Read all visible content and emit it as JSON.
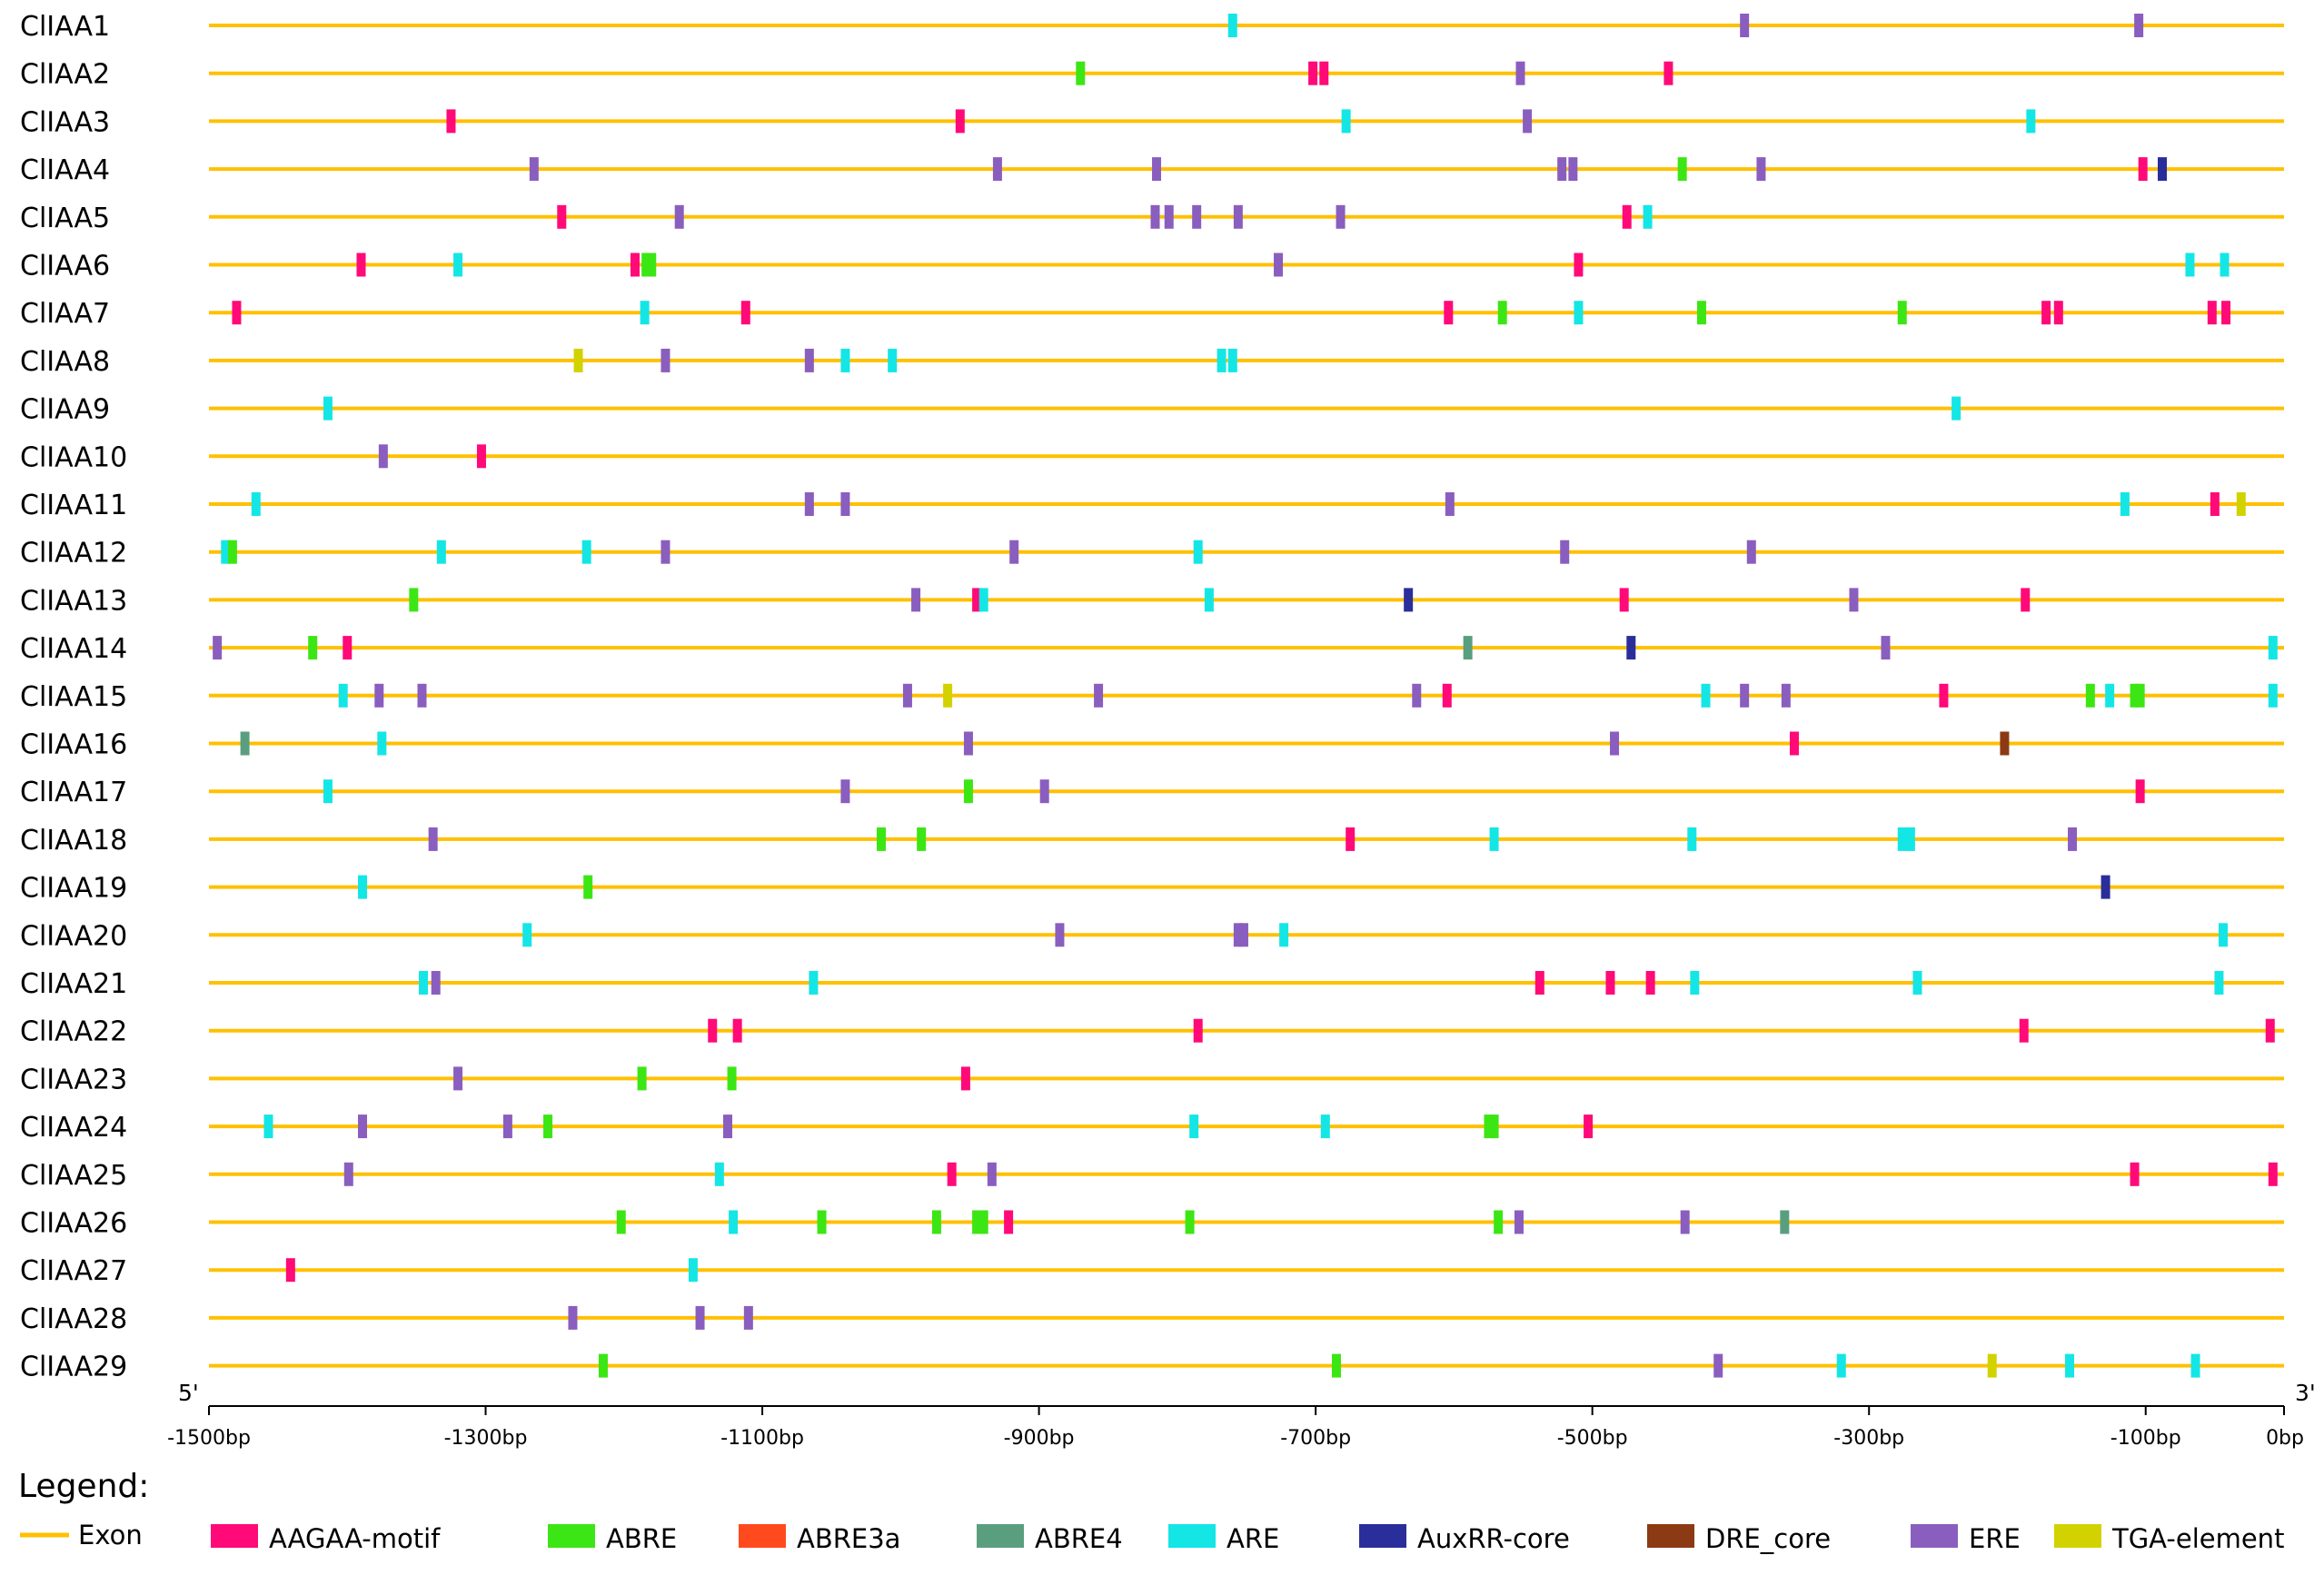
{
  "colors": {
    "exon": "#FFC000",
    "AAGAA-motif": "#FF0A78",
    "ABRE": "#3CE614",
    "ABRE3a": "#FF4A1E",
    "ABRE4": "#5A9E80",
    "ARE": "#14E6E6",
    "AuxRR-core": "#2A2E9A",
    "DRE_core": "#8B3A14",
    "ERE": "#8A5EBE",
    "TGA-element": "#D2D200"
  },
  "axis": {
    "min": -1500,
    "max": 0,
    "ticks": [
      {
        "value": -1500,
        "label": "-1500bp"
      },
      {
        "value": -1300,
        "label": "-1300bp"
      },
      {
        "value": -1100,
        "label": "-1100bp"
      },
      {
        "value": -900,
        "label": "-900bp"
      },
      {
        "value": -700,
        "label": "-700bp"
      },
      {
        "value": -500,
        "label": "-500bp"
      },
      {
        "value": -300,
        "label": "-300bp"
      },
      {
        "value": -100,
        "label": "-100bp"
      },
      {
        "value": 0,
        "label": "0bp"
      }
    ],
    "five_prime": "5'",
    "three_prime": "3'"
  },
  "legend": {
    "title": "Legend:",
    "exon_label": "Exon",
    "items": [
      {
        "key": "AAGAA-motif",
        "label": "AAGAA-motif"
      },
      {
        "key": "ABRE",
        "label": "ABRE"
      },
      {
        "key": "ABRE3a",
        "label": "ABRE3a"
      },
      {
        "key": "ABRE4",
        "label": "ABRE4"
      },
      {
        "key": "ARE",
        "label": "ARE"
      },
      {
        "key": "AuxRR-core",
        "label": "AuxRR-core"
      },
      {
        "key": "DRE_core",
        "label": "DRE_core"
      },
      {
        "key": "ERE",
        "label": "ERE"
      },
      {
        "key": "TGA-element",
        "label": "TGA-element"
      }
    ]
  },
  "genes": [
    {
      "name": "ClIAA1",
      "elements": [
        [
          "ARE",
          -760
        ],
        [
          "ERE",
          -390
        ],
        [
          "ERE",
          -105
        ]
      ]
    },
    {
      "name": "ClIAA2",
      "elements": [
        [
          "ABRE",
          -870
        ],
        [
          "AAGAA-motif",
          -702
        ],
        [
          "AAGAA-motif",
          -694
        ],
        [
          "ERE",
          -552
        ],
        [
          "AAGAA-motif",
          -445
        ]
      ]
    },
    {
      "name": "ClIAA3",
      "elements": [
        [
          "AAGAA-motif",
          -1325
        ],
        [
          "AAGAA-motif",
          -957
        ],
        [
          "ARE",
          -678
        ],
        [
          "ERE",
          -547
        ],
        [
          "ARE",
          -183
        ]
      ]
    },
    {
      "name": "ClIAA4",
      "elements": [
        [
          "ERE",
          -1265
        ],
        [
          "ERE",
          -930
        ],
        [
          "ERE",
          -815
        ],
        [
          "ERE",
          -522
        ],
        [
          "ERE",
          -514
        ],
        [
          "ABRE",
          -435
        ],
        [
          "ERE",
          -378
        ],
        [
          "AAGAA-motif",
          -102
        ],
        [
          "AuxRR-core",
          -88
        ]
      ]
    },
    {
      "name": "ClIAA5",
      "elements": [
        [
          "AAGAA-motif",
          -1245
        ],
        [
          "ERE",
          -1160
        ],
        [
          "ERE",
          -816
        ],
        [
          "ERE",
          -806
        ],
        [
          "ERE",
          -786
        ],
        [
          "ERE",
          -756
        ],
        [
          "ERE",
          -682
        ],
        [
          "AAGAA-motif",
          -475
        ],
        [
          "ARE",
          -460
        ]
      ]
    },
    {
      "name": "ClIAA6",
      "elements": [
        [
          "AAGAA-motif",
          -1390
        ],
        [
          "ARE",
          -1320
        ],
        [
          "AAGAA-motif",
          -1192
        ],
        [
          "ABRE",
          -1184
        ],
        [
          "ABRE",
          -1180
        ],
        [
          "ERE",
          -727
        ],
        [
          "AAGAA-motif",
          -510
        ],
        [
          "ARE",
          -68
        ],
        [
          "ARE",
          -43
        ]
      ]
    },
    {
      "name": "ClIAA7",
      "elements": [
        [
          "AAGAA-motif",
          -1480
        ],
        [
          "ARE",
          -1185
        ],
        [
          "AAGAA-motif",
          -1112
        ],
        [
          "AAGAA-motif",
          -604
        ],
        [
          "ABRE",
          -565
        ],
        [
          "ARE",
          -510
        ],
        [
          "ABRE",
          -421
        ],
        [
          "ABRE",
          -276
        ],
        [
          "AAGAA-motif",
          -172
        ],
        [
          "AAGAA-motif",
          -163
        ],
        [
          "AAGAA-motif",
          -52
        ],
        [
          "AAGAA-motif",
          -42
        ]
      ]
    },
    {
      "name": "ClIAA8",
      "elements": [
        [
          "TGA-element",
          -1233
        ],
        [
          "ERE",
          -1170
        ],
        [
          "ERE",
          -1066
        ],
        [
          "ARE",
          -1040
        ],
        [
          "ARE",
          -1006
        ],
        [
          "ARE",
          -768
        ],
        [
          "ARE",
          -760
        ]
      ]
    },
    {
      "name": "ClIAA9",
      "elements": [
        [
          "ARE",
          -1414
        ],
        [
          "ARE",
          -237
        ]
      ]
    },
    {
      "name": "ClIAA10",
      "elements": [
        [
          "ERE",
          -1374
        ],
        [
          "AAGAA-motif",
          -1303
        ]
      ]
    },
    {
      "name": "ClIAA11",
      "elements": [
        [
          "ARE",
          -1466
        ],
        [
          "ERE",
          -1066
        ],
        [
          "ERE",
          -1040
        ],
        [
          "ERE",
          -603
        ],
        [
          "ARE",
          -115
        ],
        [
          "AAGAA-motif",
          -50
        ],
        [
          "TGA-element",
          -31
        ]
      ]
    },
    {
      "name": "ClIAA12",
      "elements": [
        [
          "ARE",
          -1488
        ],
        [
          "ABRE",
          -1483
        ],
        [
          "ARE",
          -1332
        ],
        [
          "ARE",
          -1227
        ],
        [
          "ERE",
          -1170
        ],
        [
          "ERE",
          -918
        ],
        [
          "ARE",
          -785
        ],
        [
          "ERE",
          -520
        ],
        [
          "ERE",
          -385
        ]
      ]
    },
    {
      "name": "ClIAA13",
      "elements": [
        [
          "ABRE",
          -1352
        ],
        [
          "ERE",
          -989
        ],
        [
          "AAGAA-motif",
          -945
        ],
        [
          "ARE",
          -940
        ],
        [
          "ARE",
          -777
        ],
        [
          "AuxRR-core",
          -633
        ],
        [
          "AAGAA-motif",
          -477
        ],
        [
          "ERE",
          -311
        ],
        [
          "AAGAA-motif",
          -187
        ]
      ]
    },
    {
      "name": "ClIAA14",
      "elements": [
        [
          "ERE",
          -1494
        ],
        [
          "ABRE",
          -1425
        ],
        [
          "AAGAA-motif",
          -1400
        ],
        [
          "ABRE4",
          -590
        ],
        [
          "AuxRR-core",
          -472
        ],
        [
          "ERE",
          -288
        ],
        [
          "ARE",
          -8
        ]
      ]
    },
    {
      "name": "ClIAA15",
      "elements": [
        [
          "ARE",
          -1403
        ],
        [
          "ERE",
          -1377
        ],
        [
          "ERE",
          -1346
        ],
        [
          "ERE",
          -995
        ],
        [
          "TGA-element",
          -966
        ],
        [
          "ERE",
          -857
        ],
        [
          "ERE",
          -627
        ],
        [
          "AAGAA-motif",
          -605
        ],
        [
          "ARE",
          -418
        ],
        [
          "ERE",
          -390
        ],
        [
          "ERE",
          -360
        ],
        [
          "AAGAA-motif",
          -246
        ],
        [
          "ABRE",
          -140
        ],
        [
          "ARE",
          -126
        ],
        [
          "ABRE",
          -108
        ],
        [
          "ABRE",
          -104
        ],
        [
          "ARE",
          -8
        ]
      ]
    },
    {
      "name": "ClIAA16",
      "elements": [
        [
          "ABRE4",
          -1474
        ],
        [
          "ARE",
          -1375
        ],
        [
          "ERE",
          -951
        ],
        [
          "ERE",
          -484
        ],
        [
          "AAGAA-motif",
          -354
        ],
        [
          "DRE_core",
          -202
        ]
      ]
    },
    {
      "name": "ClIAA17",
      "elements": [
        [
          "ARE",
          -1414
        ],
        [
          "ERE",
          -1040
        ],
        [
          "ABRE",
          -951
        ],
        [
          "ERE",
          -896
        ],
        [
          "AAGAA-motif",
          -104
        ]
      ]
    },
    {
      "name": "ClIAA18",
      "elements": [
        [
          "ERE",
          -1338
        ],
        [
          "ABRE",
          -1014
        ],
        [
          "ABRE",
          -985
        ],
        [
          "AAGAA-motif",
          -675
        ],
        [
          "ARE",
          -571
        ],
        [
          "ARE",
          -428
        ],
        [
          "ARE",
          -276
        ],
        [
          "ARE",
          -270
        ],
        [
          "ERE",
          -153
        ]
      ]
    },
    {
      "name": "ClIAA19",
      "elements": [
        [
          "ARE",
          -1389
        ],
        [
          "ABRE",
          -1226
        ],
        [
          "AuxRR-core",
          -129
        ]
      ]
    },
    {
      "name": "ClIAA20",
      "elements": [
        [
          "ARE",
          -1270
        ],
        [
          "ERE",
          -885
        ],
        [
          "ERE",
          -756
        ],
        [
          "ERE",
          -752
        ],
        [
          "ARE",
          -723
        ],
        [
          "ARE",
          -44
        ]
      ]
    },
    {
      "name": "ClIAA21",
      "elements": [
        [
          "ARE",
          -1345
        ],
        [
          "ERE",
          -1336
        ],
        [
          "ARE",
          -1063
        ],
        [
          "AAGAA-motif",
          -538
        ],
        [
          "AAGAA-motif",
          -487
        ],
        [
          "AAGAA-motif",
          -458
        ],
        [
          "ARE",
          -426
        ],
        [
          "ARE",
          -265
        ],
        [
          "ARE",
          -47
        ]
      ]
    },
    {
      "name": "ClIAA22",
      "elements": [
        [
          "AAGAA-motif",
          -1136
        ],
        [
          "AAGAA-motif",
          -1118
        ],
        [
          "AAGAA-motif",
          -785
        ],
        [
          "AAGAA-motif",
          -188
        ],
        [
          "AAGAA-motif",
          -10
        ]
      ]
    },
    {
      "name": "ClIAA23",
      "elements": [
        [
          "ERE",
          -1320
        ],
        [
          "ABRE",
          -1187
        ],
        [
          "ABRE",
          -1122
        ],
        [
          "AAGAA-motif",
          -953
        ]
      ]
    },
    {
      "name": "ClIAA24",
      "elements": [
        [
          "ARE",
          -1457
        ],
        [
          "ERE",
          -1389
        ],
        [
          "ERE",
          -1284
        ],
        [
          "ABRE",
          -1255
        ],
        [
          "ERE",
          -1125
        ],
        [
          "ARE",
          -788
        ],
        [
          "ARE",
          -693
        ],
        [
          "ABRE",
          -575
        ],
        [
          "ABRE",
          -571
        ],
        [
          "AAGAA-motif",
          -503
        ]
      ]
    },
    {
      "name": "ClIAA25",
      "elements": [
        [
          "ERE",
          -1399
        ],
        [
          "ARE",
          -1131
        ],
        [
          "AAGAA-motif",
          -963
        ],
        [
          "ERE",
          -934
        ],
        [
          "AAGAA-motif",
          -108
        ],
        [
          "AAGAA-motif",
          -8
        ]
      ]
    },
    {
      "name": "ClIAA26",
      "elements": [
        [
          "ABRE",
          -1202
        ],
        [
          "ARE",
          -1121
        ],
        [
          "ABRE",
          -1057
        ],
        [
          "ABRE",
          -974
        ],
        [
          "ABRE",
          -945
        ],
        [
          "ABRE",
          -940
        ],
        [
          "AAGAA-motif",
          -922
        ],
        [
          "ABRE",
          -791
        ],
        [
          "ABRE",
          -568
        ],
        [
          "ERE",
          -553
        ],
        [
          "ERE",
          -433
        ],
        [
          "ABRE4",
          -361
        ]
      ]
    },
    {
      "name": "ClIAA27",
      "elements": [
        [
          "AAGAA-motif",
          -1441
        ],
        [
          "ARE",
          -1150
        ]
      ]
    },
    {
      "name": "ClIAA28",
      "elements": [
        [
          "ERE",
          -1237
        ],
        [
          "ERE",
          -1145
        ],
        [
          "ERE",
          -1110
        ]
      ]
    },
    {
      "name": "ClIAA29",
      "elements": [
        [
          "ABRE",
          -1215
        ],
        [
          "ABRE",
          -685
        ],
        [
          "ERE",
          -409
        ],
        [
          "ARE",
          -320
        ],
        [
          "TGA-element",
          -211
        ],
        [
          "ARE",
          -155
        ],
        [
          "ARE",
          -64
        ]
      ]
    }
  ]
}
